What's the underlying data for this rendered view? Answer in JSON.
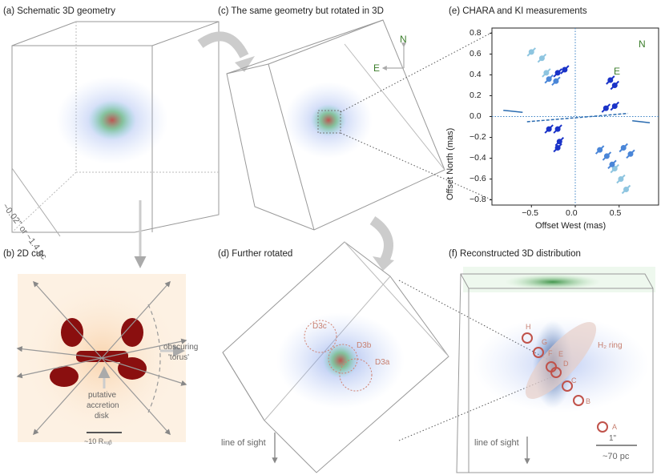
{
  "panels": {
    "a": {
      "title": "(a) Schematic 3D geometry",
      "scale_label": "~0.02\" or ~1.4 pc"
    },
    "b": {
      "title": "(b) 2D cut",
      "torus_label_1": "obscuring",
      "torus_label_2": "'torus'",
      "disk_label_1": "putative",
      "disk_label_2": "accretion",
      "disk_label_3": "disk",
      "scalebar_label": "~10 Rₛᵤᵦ"
    },
    "c": {
      "title": "(c) The same geometry but rotated in 3D",
      "north": "N",
      "east": "E"
    },
    "d": {
      "title": "(d) Further rotated",
      "labels": [
        "D3c",
        "D3b",
        "D3a"
      ],
      "line_of_sight": "line of sight"
    },
    "e": {
      "title": "(e) CHARA and KI measurements",
      "north": "N",
      "east": "E"
    },
    "f": {
      "title": "(f) Reconstructed 3D distribution",
      "ring_label": "H₂ ring",
      "cloud_labels": [
        "H",
        "G",
        "F",
        "E",
        "D",
        "C",
        "B",
        "A"
      ],
      "line_of_sight": "line of sight",
      "scale_top": "1\"",
      "scale_bottom": "~70 pc"
    }
  },
  "chart_data": {
    "type": "scatter",
    "title": "(e) CHARA and KI measurements",
    "xlabel": "Offset West (mas)",
    "ylabel": "Offset North (mas)",
    "xlim": [
      -0.95,
      0.95
    ],
    "ylim": [
      -0.85,
      0.85
    ],
    "xticks": [
      -0.5,
      0.0,
      0.5
    ],
    "xtick_labels": [
      "−0.5",
      "0.0",
      "0.5"
    ],
    "yticks": [
      0.8,
      0.6,
      0.4,
      0.2,
      0.0,
      -0.2,
      -0.4,
      -0.6,
      -0.8
    ],
    "ytick_labels": [
      "0.8",
      "0.6",
      "0.4",
      "0.2",
      "0.0",
      "−0.2",
      "−0.4",
      "−0.6",
      "−0.8"
    ],
    "series": [
      {
        "name": "light",
        "color": "#8ec5e0",
        "points": [
          [
            -0.5,
            0.62
          ],
          [
            -0.38,
            0.56
          ],
          [
            -0.33,
            0.42
          ],
          [
            0.45,
            -0.5
          ],
          [
            0.52,
            -0.6
          ],
          [
            0.58,
            -0.7
          ]
        ]
      },
      {
        "name": "medium",
        "color": "#4a86d8",
        "points": [
          [
            -0.3,
            0.36
          ],
          [
            -0.22,
            0.34
          ],
          [
            0.28,
            -0.32
          ],
          [
            0.36,
            -0.38
          ],
          [
            0.42,
            -0.46
          ],
          [
            0.55,
            -0.3
          ],
          [
            0.63,
            -0.36
          ]
        ]
      },
      {
        "name": "dark",
        "color": "#1a33c8",
        "points": [
          [
            -0.2,
            0.42
          ],
          [
            -0.12,
            0.45
          ],
          [
            0.35,
            0.08
          ],
          [
            0.45,
            0.1
          ],
          [
            -0.3,
            -0.12
          ],
          [
            -0.2,
            -0.12
          ],
          [
            0.4,
            0.35
          ],
          [
            0.45,
            0.3
          ],
          [
            -0.2,
            -0.3
          ],
          [
            -0.18,
            -0.24
          ]
        ]
      }
    ]
  }
}
